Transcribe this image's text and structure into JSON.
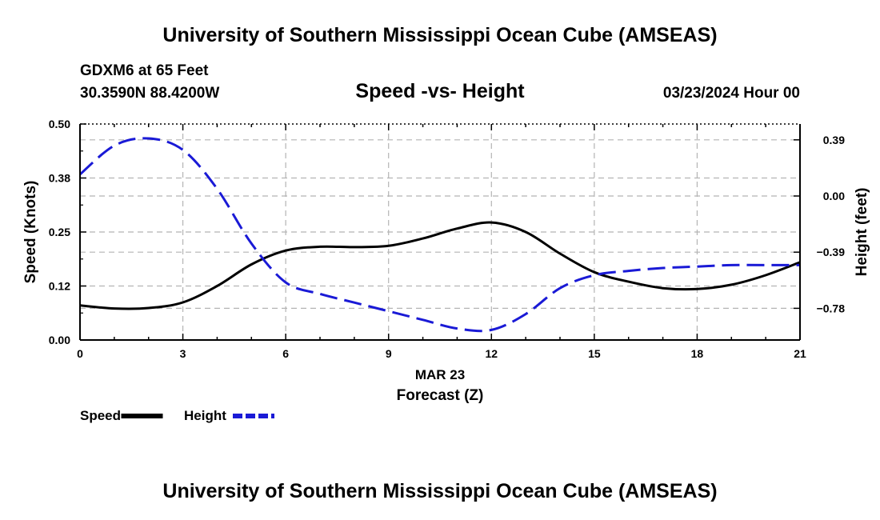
{
  "header": {
    "title": "University of Southern Mississippi Ocean Cube (AMSEAS)",
    "footer_title": "University of Southern Mississippi Ocean Cube (AMSEAS)",
    "station": "GDXM6 at 65 Feet",
    "coordinates": "30.3590N  88.4200W",
    "date": "03/23/2024 Hour 00"
  },
  "chart_data": {
    "type": "line",
    "title": "Speed -vs- Height",
    "xlabel": "Forecast (Z)",
    "xsublabel": "MAR 23",
    "ylabel": "Speed (Knots)",
    "y2label": "Height (feet)",
    "xlim": [
      0,
      21
    ],
    "ylim": [
      0,
      0.5
    ],
    "y2lim": [
      -1.0,
      0.5
    ],
    "x_ticks": [
      0,
      3,
      6,
      9,
      12,
      15,
      18,
      21
    ],
    "x_tick_labels": [
      "0",
      "3",
      "6",
      "9",
      "12",
      "15",
      "18",
      "21"
    ],
    "y_ticks": [
      0,
      0.125,
      0.25,
      0.375,
      0.5
    ],
    "y_tick_labels": [
      "0.00",
      "0.12",
      "0.25",
      "0.38",
      "0.50"
    ],
    "y2_ticks": [
      0.39,
      0.0,
      -0.39,
      -0.78
    ],
    "y2_tick_labels": [
      "0.39",
      "0.00",
      "-0.39",
      "-0.78"
    ],
    "grid": true,
    "legend": [
      "Speed",
      "Height"
    ],
    "series": [
      {
        "name": "Speed",
        "axis": "left",
        "color": "#000000",
        "dash": "solid",
        "x": [
          0,
          1,
          2,
          3,
          4,
          5,
          6,
          7,
          8,
          9,
          10,
          11,
          12,
          13,
          14,
          15,
          16,
          17,
          18,
          19,
          20,
          21
        ],
        "values": [
          0.08,
          0.073,
          0.074,
          0.087,
          0.125,
          0.175,
          0.207,
          0.216,
          0.215,
          0.218,
          0.235,
          0.258,
          0.272,
          0.25,
          0.2,
          0.157,
          0.135,
          0.12,
          0.118,
          0.128,
          0.15,
          0.18
        ]
      },
      {
        "name": "Height",
        "axis": "right",
        "color": "#1a1ad6",
        "dash": "dashed",
        "x": [
          0,
          1,
          2,
          3,
          4,
          5,
          6,
          7,
          8,
          9,
          10,
          11,
          12,
          13,
          14,
          15,
          16,
          17,
          18,
          19,
          20,
          21
        ],
        "values": [
          0.15,
          0.35,
          0.4,
          0.32,
          0.05,
          -0.33,
          -0.6,
          -0.68,
          -0.74,
          -0.8,
          -0.86,
          -0.92,
          -0.93,
          -0.82,
          -0.64,
          -0.55,
          -0.52,
          -0.5,
          -0.49,
          -0.48,
          -0.48,
          -0.48
        ]
      }
    ]
  }
}
